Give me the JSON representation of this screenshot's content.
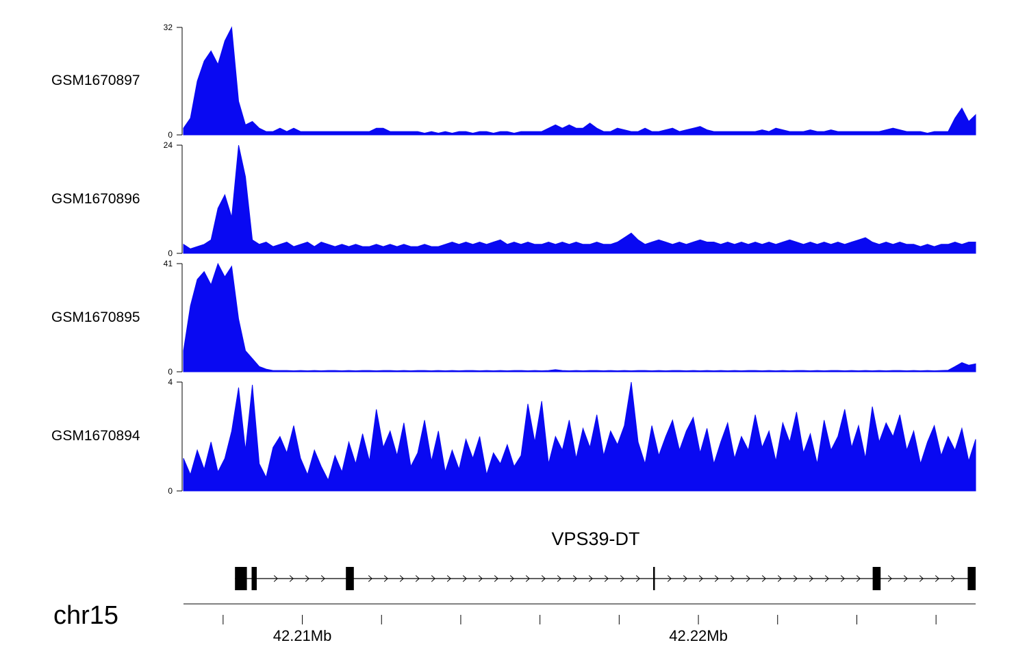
{
  "page": {
    "background": "#ffffff"
  },
  "chart_data": {
    "type": "area",
    "title": "",
    "description": "Genome browser coverage view of four samples over chr15 around the VPS39-DT gene",
    "region": {
      "chromosome": "chr15",
      "x_start_mb": 42.207,
      "x_end_mb": 42.227,
      "ticks_mb": [
        42.208,
        42.21,
        42.212,
        42.214,
        42.216,
        42.218,
        42.22,
        42.222,
        42.224,
        42.226
      ],
      "major_ticks": [
        {
          "value": 42.21,
          "label": "42.21Mb"
        },
        {
          "value": 42.22,
          "label": "42.22Mb"
        }
      ]
    },
    "tracks": [
      {
        "name": "GSM1670897",
        "ymin": 0,
        "ymax": 32,
        "color": "#0909f2",
        "values": [
          2,
          5,
          16,
          22,
          25,
          21,
          28,
          32,
          10,
          3,
          4,
          2,
          1,
          1,
          2,
          1,
          2,
          1,
          1,
          1,
          1,
          1,
          1,
          1,
          1,
          1,
          1,
          1,
          2,
          2,
          1,
          1,
          1,
          1,
          1,
          0.5,
          1,
          0.5,
          1,
          0.5,
          1,
          1,
          0.5,
          1,
          1,
          0.5,
          1,
          1,
          0.5,
          1,
          1,
          1,
          1,
          2,
          3,
          2,
          3,
          2,
          2,
          3.5,
          2,
          1,
          1,
          2,
          1.5,
          1,
          1,
          2,
          1,
          1,
          1.5,
          2,
          1,
          1.5,
          2,
          2.5,
          1.5,
          1,
          1,
          1,
          1,
          1,
          1,
          1,
          1.5,
          1,
          2,
          1.5,
          1,
          1,
          1,
          1.5,
          1,
          1,
          1.5,
          1,
          1,
          1,
          1,
          1,
          1,
          1,
          1.5,
          2,
          1.5,
          1,
          1,
          1,
          0.5,
          1,
          1,
          1,
          5,
          8,
          4,
          6
        ]
      },
      {
        "name": "GSM1670896",
        "ymin": 0,
        "ymax": 24,
        "color": "#0909f2",
        "values": [
          2,
          1,
          1.5,
          2,
          3,
          10,
          13,
          8,
          24,
          17,
          3,
          2,
          2.5,
          1.5,
          2,
          2.5,
          1.5,
          2,
          2.5,
          1.5,
          2.5,
          2,
          1.5,
          2,
          1.5,
          2,
          1.5,
          1.5,
          2,
          1.5,
          2,
          1.5,
          2,
          1.5,
          1.5,
          2,
          1.5,
          1.5,
          2,
          2.5,
          2,
          2.5,
          2,
          2.5,
          2,
          2.5,
          3,
          2,
          2.5,
          2,
          2.5,
          2,
          2,
          2.5,
          2,
          2.5,
          2,
          2.5,
          2,
          2,
          2.5,
          2,
          2,
          2.5,
          3.5,
          4.5,
          3,
          2,
          2.5,
          3,
          2.5,
          2,
          2.5,
          2,
          2.5,
          3,
          2.5,
          2.5,
          2,
          2.5,
          2,
          2.5,
          2,
          2.5,
          2,
          2.5,
          2,
          2.5,
          3,
          2.5,
          2,
          2.5,
          2,
          2.5,
          2,
          2.5,
          2,
          2.5,
          3,
          3.5,
          2.5,
          2,
          2.5,
          2,
          2.5,
          2,
          2,
          1.5,
          2,
          1.5,
          2,
          2,
          2.5,
          2,
          2.5,
          2.5
        ]
      },
      {
        "name": "GSM1670895",
        "ymin": 0,
        "ymax": 41,
        "color": "#0909f2",
        "values": [
          8,
          25,
          35,
          38,
          33,
          41,
          36,
          40,
          20,
          8,
          5,
          2,
          1,
          0.5,
          0.5,
          0.5,
          0.4,
          0.5,
          0.4,
          0.5,
          0.4,
          0.5,
          0.5,
          0.4,
          0.5,
          0.4,
          0.5,
          0.5,
          0.4,
          0.5,
          0.5,
          0.4,
          0.5,
          0.4,
          0.5,
          0.5,
          0.4,
          0.5,
          0.4,
          0.5,
          0.4,
          0.5,
          0.5,
          0.4,
          0.5,
          0.4,
          0.5,
          0.4,
          0.5,
          0.5,
          0.4,
          0.5,
          0.4,
          0.5,
          0.8,
          0.5,
          0.4,
          0.5,
          0.4,
          0.5,
          0.5,
          0.4,
          0.5,
          0.4,
          0.5,
          0.4,
          0.5,
          0.5,
          0.4,
          0.5,
          0.4,
          0.5,
          0.5,
          0.4,
          0.5,
          0.4,
          0.5,
          0.4,
          0.5,
          0.4,
          0.5,
          0.4,
          0.5,
          0.5,
          0.4,
          0.5,
          0.4,
          0.5,
          0.4,
          0.5,
          0.5,
          0.4,
          0.5,
          0.4,
          0.5,
          0.5,
          0.4,
          0.5,
          0.4,
          0.5,
          0.4,
          0.5,
          0.4,
          0.5,
          0.5,
          0.4,
          0.5,
          0.4,
          0.5,
          0.4,
          0.5,
          0.6,
          2,
          3.5,
          2.5,
          3
        ]
      },
      {
        "name": "GSM1670894",
        "ymin": 0,
        "ymax": 4,
        "color": "#0909f2",
        "values": [
          1.2,
          0.6,
          1.5,
          0.8,
          1.8,
          0.7,
          1.2,
          2.2,
          3.8,
          1.5,
          3.9,
          1.0,
          0.5,
          1.6,
          2.0,
          1.4,
          2.4,
          1.2,
          0.6,
          1.5,
          0.9,
          0.4,
          1.3,
          0.7,
          1.8,
          1.0,
          2.1,
          1.1,
          3.0,
          1.6,
          2.2,
          1.3,
          2.5,
          0.9,
          1.4,
          2.6,
          1.1,
          2.2,
          0.7,
          1.5,
          0.8,
          1.9,
          1.2,
          2.0,
          0.6,
          1.4,
          1.0,
          1.7,
          0.9,
          1.3,
          3.2,
          1.8,
          3.3,
          1.0,
          2.0,
          1.5,
          2.6,
          1.2,
          2.3,
          1.6,
          2.8,
          1.3,
          2.2,
          1.7,
          2.4,
          4.0,
          1.8,
          1.0,
          2.4,
          1.3,
          2.0,
          2.6,
          1.5,
          2.2,
          2.7,
          1.4,
          2.3,
          1.0,
          1.8,
          2.5,
          1.2,
          2.0,
          1.5,
          2.8,
          1.6,
          2.2,
          1.1,
          2.5,
          1.8,
          2.9,
          1.4,
          2.1,
          1.0,
          2.6,
          1.5,
          2.0,
          3.0,
          1.6,
          2.4,
          1.2,
          3.1,
          1.8,
          2.5,
          2.0,
          2.8,
          1.5,
          2.2,
          1.0,
          1.8,
          2.4,
          1.3,
          2.0,
          1.5,
          2.3,
          1.1,
          1.9
        ]
      }
    ],
    "gene_track": {
      "name": "VPS39-DT",
      "strand": "right",
      "start_mb": 42.2083,
      "end_mb": 42.227,
      "exons": [
        {
          "start_mb": 42.2083,
          "end_mb": 42.2086
        },
        {
          "start_mb": 42.20872,
          "end_mb": 42.20885
        },
        {
          "start_mb": 42.2111,
          "end_mb": 42.2113
        },
        {
          "start_mb": 42.21886,
          "end_mb": 42.2189
        },
        {
          "start_mb": 42.2244,
          "end_mb": 42.2246
        },
        {
          "start_mb": 42.2268,
          "end_mb": 42.227
        }
      ]
    }
  }
}
